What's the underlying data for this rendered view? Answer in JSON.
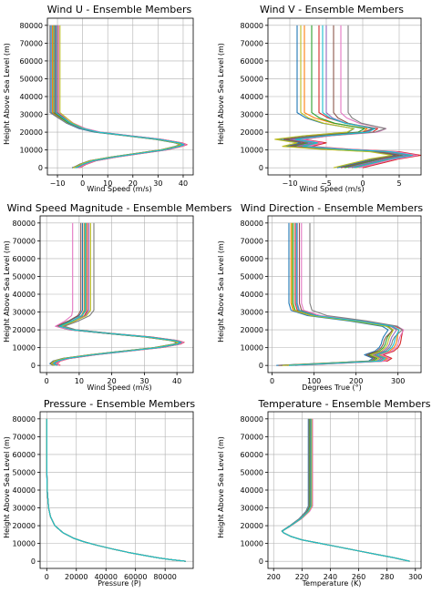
{
  "figure": {
    "palette": [
      "#1f77b4",
      "#ff7f0e",
      "#2ca02c",
      "#d62728",
      "#9467bd",
      "#8c564b",
      "#e377c2",
      "#7f7f7f",
      "#bcbd22",
      "#17becf"
    ],
    "ensemble_size": 10
  },
  "chart_data": [
    {
      "type": "line",
      "title": "Wind U - Ensemble Members",
      "xlabel": "Wind Speed (m/s)",
      "ylabel": "Height Above Sea Level (m)",
      "xlim": [
        -14,
        44
      ],
      "ylim": [
        -4000,
        84000
      ],
      "xticks": [
        -10,
        0,
        10,
        20,
        30,
        40
      ],
      "yticks": [
        0,
        10000,
        20000,
        30000,
        40000,
        50000,
        60000,
        70000,
        80000
      ],
      "grid": true,
      "profile": {
        "heights": [
          0,
          500,
          2000,
          4000,
          6000,
          8000,
          10000,
          12000,
          13000,
          14000,
          16000,
          18000,
          20000,
          22000,
          25000,
          28000,
          31000,
          35000,
          50000,
          65000,
          80000
        ],
        "values": [
          -3,
          -2,
          0,
          4,
          12,
          22,
          32,
          38,
          40,
          38,
          30,
          18,
          6,
          0,
          -5,
          -8,
          -11,
          -11,
          -11,
          -11,
          -11
        ]
      },
      "members_upper_offset": [
        -1.5,
        -1,
        -0.5,
        0,
        0.5,
        1,
        1.5,
        -2,
        2,
        0.3
      ],
      "members_lower_offset": [
        -1.2,
        0.8,
        -0.4,
        1.5,
        0,
        -1,
        1.2,
        0.4,
        -0.8,
        0.2
      ]
    },
    {
      "type": "line",
      "title": "Wind V - Ensemble Members",
      "xlabel": "Wind Speed (m/s)",
      "ylabel": "Height Above Sea Level (m)",
      "xlim": [
        -13,
        8
      ],
      "ylim": [
        -4000,
        84000
      ],
      "xticks": [
        -10,
        -5,
        0,
        5
      ],
      "yticks": [
        0,
        10000,
        20000,
        30000,
        40000,
        50000,
        60000,
        70000,
        80000
      ],
      "grid": true,
      "profile": {
        "heights": [
          0,
          1000,
          3000,
          5000,
          7000,
          9000,
          10500,
          12000,
          14000,
          16000,
          18000,
          20000,
          22000,
          25000,
          28000,
          31000,
          35000,
          50000,
          65000,
          80000
        ],
        "values": [
          -2,
          -1,
          1,
          3,
          6,
          3,
          -4,
          -9,
          -7,
          -10,
          -6,
          0,
          1,
          -3,
          -5,
          -6,
          -6,
          -6,
          -6,
          -6
        ]
      },
      "members_upper_offset": [
        -3,
        -2,
        -1,
        0,
        1,
        2,
        3,
        4,
        -2.5,
        0.5
      ],
      "members_lower_offset": [
        -1.5,
        1,
        -0.5,
        2,
        0,
        -1,
        1.5,
        0.5,
        -2,
        0.8
      ]
    },
    {
      "type": "line",
      "title": "Wind Speed Magnitude - Ensemble Members",
      "xlabel": "Wind Speed (m/s)",
      "ylabel": "Height Above Sea Level (m)",
      "xlim": [
        -2,
        45
      ],
      "ylim": [
        -4000,
        84000
      ],
      "xticks": [
        0,
        10,
        20,
        30,
        40
      ],
      "yticks": [
        0,
        10000,
        20000,
        30000,
        40000,
        50000,
        60000,
        70000,
        80000
      ],
      "grid": true,
      "profile": {
        "heights": [
          0,
          1000,
          2500,
          4000,
          6000,
          8000,
          10000,
          12000,
          13000,
          14000,
          16000,
          18000,
          20000,
          22000,
          25000,
          28000,
          31000,
          35000,
          50000,
          65000,
          80000
        ],
        "values": [
          3,
          2,
          3,
          6,
          14,
          24,
          34,
          40,
          41,
          39,
          31,
          19,
          8,
          4,
          8,
          11,
          12,
          12,
          12,
          12,
          12
        ]
      },
      "members_upper_offset": [
        -1,
        -0.5,
        0,
        0.5,
        1,
        -1.5,
        -4,
        2.5,
        1.5,
        -0.2
      ],
      "members_lower_offset": [
        -1,
        0.8,
        -0.5,
        1.2,
        0,
        -0.8,
        1,
        0.4,
        -0.6,
        0.2
      ]
    },
    {
      "type": "line",
      "title": "Wind Direction - Ensemble Members",
      "xlabel": "Degrees True (°)",
      "ylabel": "Height Above Sea Level (m)",
      "xlim": [
        -10,
        355
      ],
      "ylim": [
        -4000,
        84000
      ],
      "xticks": [
        0,
        100,
        200,
        300
      ],
      "yticks": [
        0,
        10000,
        20000,
        30000,
        40000,
        50000,
        60000,
        70000,
        80000
      ],
      "grid": true,
      "profile": {
        "heights": [
          0,
          1000,
          2500,
          4000,
          6000,
          8000,
          10000,
          12000,
          14000,
          16000,
          18000,
          20000,
          22000,
          25000,
          28000,
          31000,
          35000,
          50000,
          65000,
          80000
        ],
        "values": [
          30,
          120,
          250,
          260,
          240,
          265,
          275,
          280,
          282,
          285,
          290,
          295,
          280,
          200,
          100,
          60,
          55,
          55,
          55,
          55
        ]
      },
      "members_upper_offset": [
        -15,
        -10,
        -5,
        0,
        5,
        10,
        15,
        35,
        -8,
        3
      ],
      "members_lower_offset": [
        -20,
        15,
        -10,
        25,
        0,
        -15,
        20,
        5,
        -5,
        10
      ]
    },
    {
      "type": "line",
      "title": "Pressure - Ensemble Members",
      "xlabel": "Pressure (P)",
      "ylabel": "Height Above Sea Level (m)",
      "xlim": [
        -4500,
        99000
      ],
      "ylim": [
        -4000,
        84000
      ],
      "xticks": [
        0,
        20000,
        40000,
        60000,
        80000
      ],
      "yticks": [
        0,
        10000,
        20000,
        30000,
        40000,
        50000,
        60000,
        70000,
        80000
      ],
      "grid": true,
      "profile": {
        "heights": [
          0,
          1000,
          2000,
          3000,
          5000,
          7000,
          9000,
          11000,
          13000,
          16000,
          20000,
          25000,
          30000,
          40000,
          50000,
          60000,
          70000,
          80000
        ],
        "values": [
          94000,
          83000,
          75000,
          68000,
          55000,
          44000,
          34000,
          25000,
          18000,
          11000,
          5500,
          2500,
          1200,
          300,
          80,
          20,
          5,
          1
        ]
      },
      "members_upper_offset": [
        0,
        0,
        0,
        0,
        0,
        0,
        0,
        0,
        0,
        0
      ],
      "members_lower_offset": [
        0,
        0,
        0,
        0,
        0,
        0,
        0,
        0,
        0,
        0
      ]
    },
    {
      "type": "line",
      "title": "Temperature - Ensemble Members",
      "xlabel": "Temperature (K)",
      "ylabel": "Height Above Sea Level (m)",
      "xlim": [
        196,
        304
      ],
      "ylim": [
        -4000,
        84000
      ],
      "xticks": [
        200,
        220,
        240,
        260,
        280,
        300
      ],
      "yticks": [
        0,
        10000,
        20000,
        30000,
        40000,
        50000,
        60000,
        70000,
        80000
      ],
      "grid": true,
      "profile": {
        "heights": [
          0,
          2000,
          4000,
          6000,
          8000,
          10000,
          12000,
          14000,
          16000,
          17000,
          18000,
          20000,
          24000,
          28000,
          31000,
          40000,
          50000,
          60000,
          70000,
          80000
        ],
        "values": [
          296,
          285,
          272,
          259,
          246,
          233,
          220,
          212,
          207,
          206,
          208,
          212,
          219,
          224,
          226,
          226,
          226,
          226,
          226,
          226
        ]
      },
      "members_upper_offset": [
        -1.5,
        -1,
        -0.5,
        0,
        0.5,
        1,
        1.5,
        -1.2,
        0.8,
        0.2
      ],
      "members_lower_offset": [
        0,
        0,
        0,
        0,
        0,
        0,
        0,
        0,
        0,
        0
      ]
    }
  ]
}
